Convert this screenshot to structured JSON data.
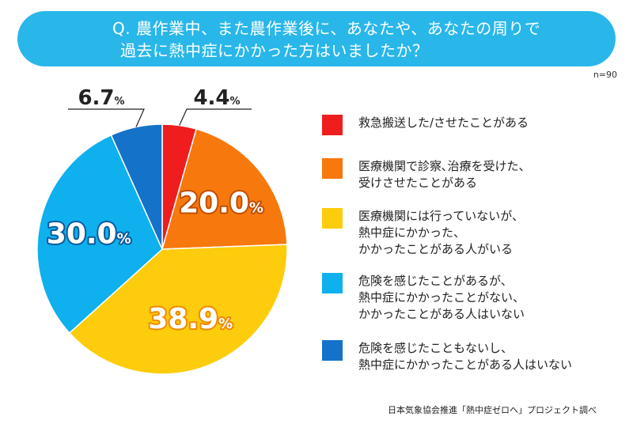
{
  "title": {
    "line1": "Q. 農作業中、また農作業後に、あなたや、あなたの周りで",
    "line2": "過去に熱中症にかかった方はいましたか？"
  },
  "sample_size": "n=90",
  "source": "日本気象協会推進「熱中症ゼロへ」プロジェクト調べ",
  "chart_data": {
    "type": "pie",
    "start": "12 o'clock",
    "direction": "clockwise",
    "slices": [
      {
        "label": "救急搬送した/させたことがある",
        "value": 4.4,
        "display": "4.4",
        "color": "#ef1d1d"
      },
      {
        "label": "医療機関で診察､治療を受けた、\n受けさせたことがある",
        "value": 20.0,
        "display": "20.0",
        "color": "#f7780c"
      },
      {
        "label": "医療機関には行っていないが、\n熱中症にかかった、\nかかったことがある人がいる",
        "value": 38.9,
        "display": "38.9",
        "color": "#fdcc0c"
      },
      {
        "label": "危険を感じたことがあるが、\n熱中症にかかったことがない、\nかかったことがある人はいない",
        "value": 30.0,
        "display": "30.0",
        "color": "#0fb0ee"
      },
      {
        "label": "危険を感じたこともないし、\n熱中症にかかったことがある人はいない",
        "value": 6.7,
        "display": "6.7",
        "color": "#1572c9"
      }
    ],
    "unit": "%"
  }
}
